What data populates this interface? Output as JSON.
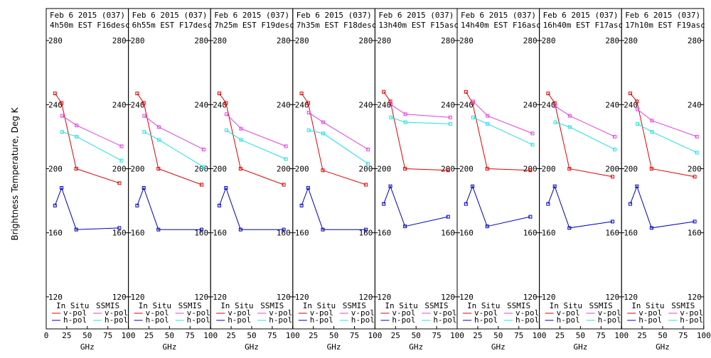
{
  "ylabel": "Brightness Temperature, Deg K",
  "xlabel": "GHz",
  "x_ticks": [
    "0",
    "25",
    "50",
    "75",
    "100"
  ],
  "y_ticks": [
    "120",
    "160",
    "200",
    "240",
    "280"
  ],
  "legend": {
    "in_situ": "In Situ",
    "ssmis": "SSMIS",
    "vpol": "v-pol",
    "hpol": "h-pol"
  },
  "colors": {
    "insitu_v": "#e00000",
    "insitu_h": "#0000c0",
    "ssmis_v": "#e040e0",
    "ssmis_h": "#20e0e0"
  },
  "chart_data": [
    {
      "type": "line",
      "title": "Feb 6 2015 (037)",
      "subtitle": "4h50m EST F16desc",
      "xlim": [
        0,
        100
      ],
      "ylim": [
        100,
        300
      ],
      "series": [
        {
          "name": "In Situ v-pol",
          "x": [
            10.65,
            18.7,
            36.5,
            89
          ],
          "y": [
            247,
            241,
            200,
            191
          ]
        },
        {
          "name": "In Situ h-pol",
          "x": [
            10.65,
            18.7,
            36.5,
            89
          ],
          "y": [
            177,
            188,
            162,
            163
          ]
        },
        {
          "name": "SSMIS v-pol",
          "x": [
            19.35,
            37,
            91.655
          ],
          "y": [
            233,
            227,
            214
          ]
        },
        {
          "name": "SSMIS h-pol",
          "x": [
            19.35,
            37,
            91.655
          ],
          "y": [
            223,
            220,
            205
          ]
        }
      ]
    },
    {
      "type": "line",
      "title": "Feb 6 2015 (037)",
      "subtitle": "6h55m EST F17desc",
      "xlim": [
        0,
        100
      ],
      "ylim": [
        100,
        300
      ],
      "series": [
        {
          "name": "In Situ v-pol",
          "x": [
            10.65,
            18.7,
            36.5,
            89
          ],
          "y": [
            247,
            241,
            200,
            190
          ]
        },
        {
          "name": "In Situ h-pol",
          "x": [
            10.65,
            18.7,
            36.5,
            89
          ],
          "y": [
            177,
            188,
            162,
            162
          ]
        },
        {
          "name": "SSMIS v-pol",
          "x": [
            19.35,
            37,
            91.655
          ],
          "y": [
            233,
            226,
            212
          ]
        },
        {
          "name": "SSMIS h-pol",
          "x": [
            19.35,
            37,
            91.655
          ],
          "y": [
            223,
            218,
            201
          ]
        }
      ]
    },
    {
      "type": "line",
      "title": "Feb 6 2015 (037)",
      "subtitle": "7h25m EST F19desc",
      "xlim": [
        0,
        100
      ],
      "ylim": [
        100,
        300
      ],
      "series": [
        {
          "name": "In Situ v-pol",
          "x": [
            10.65,
            18.7,
            36.5,
            89
          ],
          "y": [
            247,
            241,
            200,
            190
          ]
        },
        {
          "name": "In Situ h-pol",
          "x": [
            10.65,
            18.7,
            36.5,
            89
          ],
          "y": [
            177,
            188,
            162,
            162
          ]
        },
        {
          "name": "SSMIS v-pol",
          "x": [
            19.35,
            37,
            91.655
          ],
          "y": [
            234,
            225,
            214
          ]
        },
        {
          "name": "SSMIS h-pol",
          "x": [
            19.35,
            37,
            91.655
          ],
          "y": [
            224,
            218,
            206
          ]
        }
      ]
    },
    {
      "type": "line",
      "title": "Feb 6 2015 (037)",
      "subtitle": "7h35m EST F18desc",
      "xlim": [
        0,
        100
      ],
      "ylim": [
        100,
        300
      ],
      "series": [
        {
          "name": "In Situ v-pol",
          "x": [
            10.65,
            18.7,
            36.5,
            89
          ],
          "y": [
            247,
            241,
            199,
            190
          ]
        },
        {
          "name": "In Situ h-pol",
          "x": [
            10.65,
            18.7,
            36.5,
            89
          ],
          "y": [
            177,
            188,
            162,
            162
          ]
        },
        {
          "name": "SSMIS v-pol",
          "x": [
            19.35,
            37,
            91.655
          ],
          "y": [
            235,
            229,
            212
          ]
        },
        {
          "name": "SSMIS h-pol",
          "x": [
            19.35,
            37,
            91.655
          ],
          "y": [
            224,
            222,
            203
          ]
        }
      ]
    },
    {
      "type": "line",
      "title": "Feb 6 2015 (037)",
      "subtitle": "13h40m EST F15asc",
      "xlim": [
        0,
        100
      ],
      "ylim": [
        100,
        300
      ],
      "series": [
        {
          "name": "In Situ v-pol",
          "x": [
            10.65,
            18.7,
            36.5,
            89
          ],
          "y": [
            248,
            242,
            200,
            199
          ]
        },
        {
          "name": "In Situ h-pol",
          "x": [
            10.65,
            18.7,
            36.5,
            89
          ],
          "y": [
            178,
            189,
            164,
            170
          ]
        },
        {
          "name": "SSMIS v-pol",
          "x": [
            19.35,
            37,
            91.655
          ],
          "y": [
            240,
            234,
            232
          ]
        },
        {
          "name": "SSMIS h-pol",
          "x": [
            19.35,
            37,
            91.655
          ],
          "y": [
            232,
            229,
            228
          ]
        }
      ]
    },
    {
      "type": "line",
      "title": "Feb 6 2015 (037)",
      "subtitle": "14h40m EST F16asc",
      "xlim": [
        0,
        100
      ],
      "ylim": [
        100,
        300
      ],
      "series": [
        {
          "name": "In Situ v-pol",
          "x": [
            10.65,
            18.7,
            36.5,
            89
          ],
          "y": [
            248,
            241,
            200,
            199
          ]
        },
        {
          "name": "In Situ h-pol",
          "x": [
            10.65,
            18.7,
            36.5,
            89
          ],
          "y": [
            178,
            189,
            164,
            170
          ]
        },
        {
          "name": "SSMIS v-pol",
          "x": [
            19.35,
            37,
            91.655
          ],
          "y": [
            242,
            233,
            222
          ]
        },
        {
          "name": "SSMIS h-pol",
          "x": [
            19.35,
            37,
            91.655
          ],
          "y": [
            232,
            228,
            215
          ]
        }
      ]
    },
    {
      "type": "line",
      "title": "Feb 6 2015 (037)",
      "subtitle": "16h40m EST F17asc",
      "xlim": [
        0,
        100
      ],
      "ylim": [
        100,
        300
      ],
      "series": [
        {
          "name": "In Situ v-pol",
          "x": [
            10.65,
            18.7,
            36.5,
            89
          ],
          "y": [
            247,
            241,
            200,
            195
          ]
        },
        {
          "name": "In Situ h-pol",
          "x": [
            10.65,
            18.7,
            36.5,
            89
          ],
          "y": [
            178,
            189,
            163,
            167
          ]
        },
        {
          "name": "SSMIS v-pol",
          "x": [
            19.35,
            37,
            91.655
          ],
          "y": [
            239,
            233,
            220
          ]
        },
        {
          "name": "SSMIS h-pol",
          "x": [
            19.35,
            37,
            91.655
          ],
          "y": [
            229,
            226,
            212
          ]
        }
      ]
    },
    {
      "type": "line",
      "title": "Feb 6 2015 (037)",
      "subtitle": "17h10m EST F19asc",
      "xlim": [
        0,
        100
      ],
      "ylim": [
        100,
        300
      ],
      "series": [
        {
          "name": "In Situ v-pol",
          "x": [
            10.65,
            18.7,
            36.5,
            89
          ],
          "y": [
            247,
            242,
            200,
            195
          ]
        },
        {
          "name": "In Situ h-pol",
          "x": [
            10.65,
            18.7,
            36.5,
            89
          ],
          "y": [
            178,
            189,
            163,
            167
          ]
        },
        {
          "name": "SSMIS v-pol",
          "x": [
            19.35,
            37,
            91.655
          ],
          "y": [
            237,
            230,
            220
          ]
        },
        {
          "name": "SSMIS h-pol",
          "x": [
            19.35,
            37,
            91.655
          ],
          "y": [
            228,
            223,
            210
          ]
        }
      ]
    }
  ]
}
